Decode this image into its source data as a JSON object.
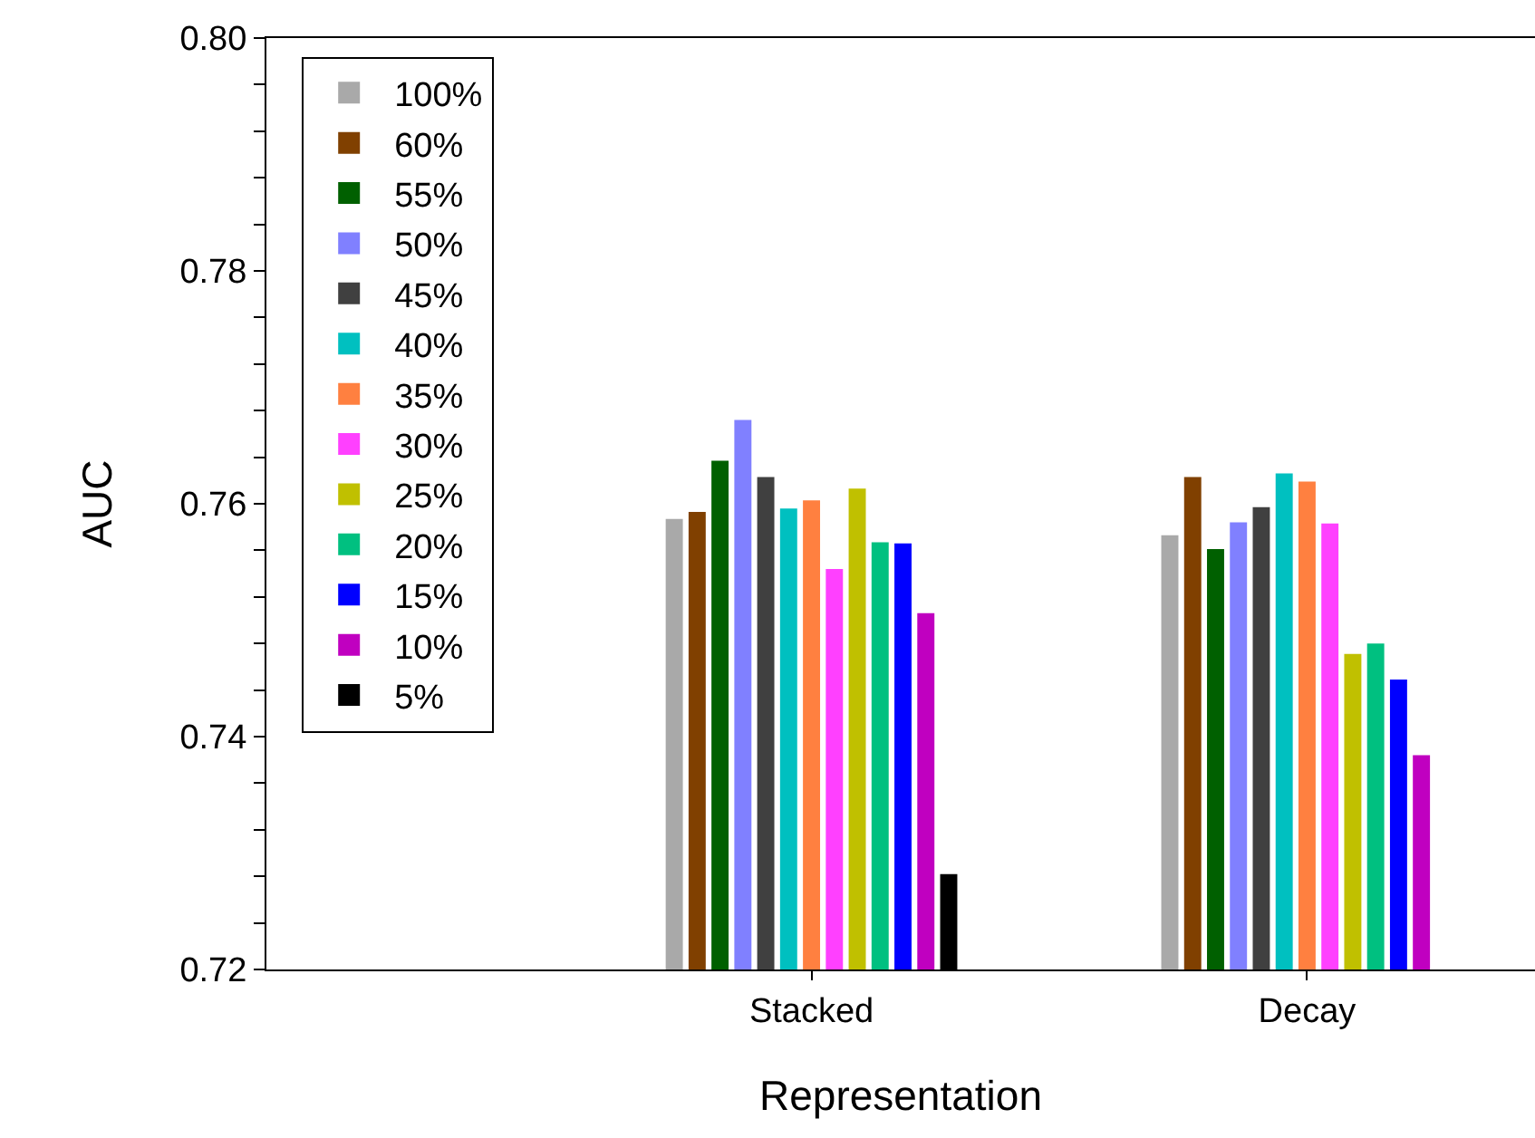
{
  "chart_data": {
    "type": "bar",
    "xlabel": "Representation",
    "ylabel": "AUC",
    "categories": [
      "Stacked",
      "Decay"
    ],
    "ylim": [
      0.72,
      0.8
    ],
    "yticks": [
      {
        "value": 0.72,
        "label": "0.72"
      },
      {
        "value": 0.724,
        "label": null
      },
      {
        "value": 0.728,
        "label": null
      },
      {
        "value": 0.732,
        "label": null
      },
      {
        "value": 0.736,
        "label": null
      },
      {
        "value": 0.74,
        "label": "0.74"
      },
      {
        "value": 0.744,
        "label": null
      },
      {
        "value": 0.748,
        "label": null
      },
      {
        "value": 0.752,
        "label": null
      },
      {
        "value": 0.756,
        "label": null
      },
      {
        "value": 0.76,
        "label": "0.76"
      },
      {
        "value": 0.764,
        "label": null
      },
      {
        "value": 0.768,
        "label": null
      },
      {
        "value": 0.772,
        "label": null
      },
      {
        "value": 0.776,
        "label": null
      },
      {
        "value": 0.78,
        "label": "0.78"
      },
      {
        "value": 0.784,
        "label": null
      },
      {
        "value": 0.788,
        "label": null
      },
      {
        "value": 0.792,
        "label": null
      },
      {
        "value": 0.796,
        "label": null
      },
      {
        "value": 0.8,
        "label": "0.80"
      }
    ],
    "legend": "top left",
    "series": [
      {
        "name": "100%",
        "color": "#a9a9a9",
        "values": [
          0.7587,
          0.7573
        ]
      },
      {
        "name": "60%",
        "color": "#804000",
        "values": [
          0.7593,
          0.7623
        ]
      },
      {
        "name": "55%",
        "color": "#006000",
        "values": [
          0.7637,
          0.7561
        ]
      },
      {
        "name": "50%",
        "color": "#8080ff",
        "values": [
          0.7672,
          0.7584
        ]
      },
      {
        "name": "45%",
        "color": "#404040",
        "values": [
          0.7623,
          0.7597
        ]
      },
      {
        "name": "40%",
        "color": "#00c0c0",
        "values": [
          0.7596,
          0.7626
        ]
      },
      {
        "name": "35%",
        "color": "#ff8040",
        "values": [
          0.7603,
          0.7619
        ]
      },
      {
        "name": "30%",
        "color": "#ff40ff",
        "values": [
          0.7544,
          0.7583
        ]
      },
      {
        "name": "25%",
        "color": "#c0c000",
        "values": [
          0.7613,
          0.7471
        ]
      },
      {
        "name": "20%",
        "color": "#00c080",
        "values": [
          0.7567,
          0.748
        ]
      },
      {
        "name": "15%",
        "color": "#0000ff",
        "values": [
          0.7566,
          0.7449
        ]
      },
      {
        "name": "10%",
        "color": "#c000c0",
        "values": [
          0.7506,
          0.7384
        ]
      },
      {
        "name": "5%",
        "color": "#000000",
        "values": [
          0.7282,
          null
        ]
      }
    ]
  }
}
